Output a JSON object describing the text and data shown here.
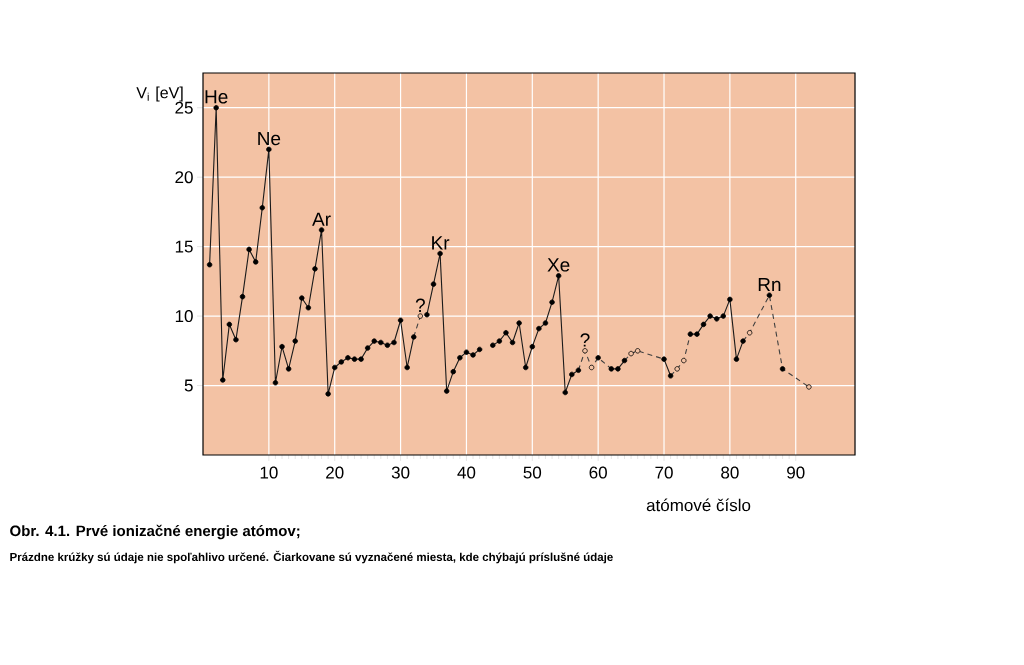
{
  "chart_data": {
    "type": "line",
    "title": "Obr. 4.1. Prvé ionizačné energie atómov;",
    "xlabel": "atómové číslo",
    "ylabel": "V$_{i}$ [eV]",
    "xlim": [
      0,
      99
    ],
    "ylim": [
      0,
      27.5
    ],
    "xticks": [
      10,
      20,
      30,
      40,
      50,
      60,
      70,
      80,
      90
    ],
    "yticks": [
      5,
      10,
      15,
      20,
      25
    ],
    "grid": true,
    "series": [
      {
        "type": "line",
        "line_style": "solid",
        "marker": "none",
        "color": "#1a1a1a",
        "x": [
          1,
          2,
          3,
          4,
          5,
          6,
          7,
          8,
          9,
          10,
          11,
          12,
          13,
          14,
          15,
          16,
          17,
          18,
          19,
          20,
          21,
          22,
          23,
          24,
          25,
          26,
          27,
          28,
          29,
          30,
          31,
          32,
          33,
          34,
          35,
          36,
          37,
          38,
          39,
          40,
          41,
          42,
          43,
          44,
          45,
          46,
          47,
          48,
          49,
          50,
          51,
          52,
          53,
          54,
          55,
          56,
          57,
          58,
          62,
          63,
          64,
          65,
          70,
          71,
          72,
          74,
          75,
          76,
          77,
          78,
          79,
          80,
          81,
          82
        ],
        "values": [
          13.7,
          25.0,
          5.4,
          9.4,
          8.3,
          11.4,
          14.8,
          13.9,
          17.8,
          22.0,
          5.2,
          7.8,
          6.2,
          8.2,
          11.3,
          10.6,
          13.4,
          16.2,
          4.4,
          6.3,
          6.7,
          7.0,
          6.9,
          6.9,
          7.7,
          8.2,
          8.1,
          7.9,
          8.1,
          9.7,
          6.3,
          8.5,
          null,
          10.1,
          12.3,
          14.5,
          4.6,
          6.0,
          7.0,
          7.4,
          7.2,
          7.6,
          null,
          7.9,
          8.2,
          8.8,
          8.1,
          9.5,
          6.3,
          7.8,
          9.1,
          9.5,
          11.0,
          12.9,
          4.5,
          5.8,
          6.1,
          null,
          6.2,
          6.2,
          6.8,
          null,
          6.9,
          5.7,
          null,
          8.7,
          8.7,
          9.4,
          10.0,
          9.8,
          10.0,
          11.2,
          6.9,
          8.2
        ]
      },
      {
        "type": "line",
        "line_style": "dashed",
        "marker": "none",
        "color": "#404040",
        "x": [
          32,
          33,
          34,
          35,
          57,
          58,
          59,
          60,
          62,
          63,
          64,
          65,
          66,
          70,
          70.5,
          71,
          72,
          73,
          74,
          75,
          82,
          83,
          86,
          88,
          92
        ],
        "values": [
          8.5,
          10.0,
          10.1,
          null,
          6.1,
          7.5,
          6.3,
          7.0,
          6.2,
          null,
          6.8,
          7.3,
          7.5,
          6.9,
          null,
          5.7,
          6.2,
          6.8,
          8.7,
          null,
          8.2,
          8.8,
          11.5,
          6.2,
          4.9
        ]
      },
      {
        "type": "scatter",
        "marker": "circle",
        "color": "#000000",
        "x": [
          1,
          2,
          3,
          4,
          5,
          6,
          7,
          8,
          9,
          10,
          11,
          12,
          13,
          14,
          15,
          16,
          17,
          18,
          19,
          20,
          21,
          22,
          23,
          24,
          25,
          26,
          27,
          28,
          29,
          30,
          31,
          32,
          34,
          35,
          36,
          37,
          38,
          39,
          40,
          41,
          42,
          44,
          45,
          46,
          47,
          48,
          49,
          50,
          51,
          52,
          53,
          54,
          55,
          56,
          57,
          60,
          62,
          63,
          64,
          70,
          71,
          74,
          75,
          76,
          77,
          78,
          79,
          80,
          81,
          82,
          86,
          88
        ],
        "values": [
          13.7,
          25.0,
          5.4,
          9.4,
          8.3,
          11.4,
          14.8,
          13.9,
          17.8,
          22.0,
          5.2,
          7.8,
          6.2,
          8.2,
          11.3,
          10.6,
          13.4,
          16.2,
          4.4,
          6.3,
          6.7,
          7.0,
          6.9,
          6.9,
          7.7,
          8.2,
          8.1,
          7.9,
          8.1,
          9.7,
          6.3,
          8.5,
          10.1,
          12.3,
          14.5,
          4.6,
          6.0,
          7.0,
          7.4,
          7.2,
          7.6,
          7.9,
          8.2,
          8.8,
          8.1,
          9.5,
          6.3,
          7.8,
          9.1,
          9.5,
          11.0,
          12.9,
          4.5,
          5.8,
          6.1,
          7.0,
          6.2,
          6.2,
          6.8,
          6.9,
          5.7,
          8.7,
          8.7,
          9.4,
          10.0,
          9.8,
          10.0,
          11.2,
          6.9,
          8.2,
          11.5,
          6.2
        ]
      },
      {
        "type": "scatter",
        "marker": "circle",
        "color": "#f3c2a4",
        "x": [
          33,
          58,
          59,
          65,
          66,
          72,
          73,
          83,
          92
        ],
        "values": [
          10.0,
          7.5,
          6.3,
          7.3,
          7.5,
          6.2,
          6.8,
          8.8,
          4.9
        ]
      }
    ],
    "annotations": [
      {
        "text": "He",
        "x": 2,
        "y": 25.0
      },
      {
        "text": "Ne",
        "x": 10,
        "y": 22.0
      },
      {
        "text": "Ar",
        "x": 18,
        "y": 16.2
      },
      {
        "text": "Kr",
        "x": 36,
        "y": 14.5
      },
      {
        "text": "Xe",
        "x": 54,
        "y": 12.9
      },
      {
        "text": "Rn",
        "x": 86,
        "y": 11.5
      },
      {
        "text": "?",
        "x": 33,
        "y": 10.0
      },
      {
        "text": "?",
        "x": 58,
        "y": 7.5
      },
      "Prázdne krúžky sú údaje nie spoľahlivo určené. Čiarkovane sú vyznačené miesta, kde chýbajú príslušné údaje"
    ]
  }
}
